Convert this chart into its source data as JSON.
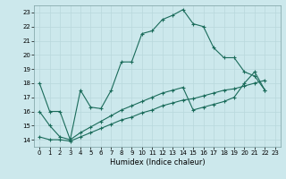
{
  "xlabel": "Humidex (Indice chaleur)",
  "background_color": "#cce8ec",
  "grid_color": "#b8d8dc",
  "line_color": "#1a6b5a",
  "xlim": [
    -0.5,
    23.5
  ],
  "ylim": [
    13.5,
    23.5
  ],
  "xticks": [
    0,
    1,
    2,
    3,
    4,
    5,
    6,
    7,
    8,
    9,
    10,
    11,
    12,
    13,
    14,
    15,
    16,
    17,
    18,
    19,
    20,
    21,
    22,
    23
  ],
  "yticks": [
    14,
    15,
    16,
    17,
    18,
    19,
    20,
    21,
    22,
    23
  ],
  "line1_x": [
    0,
    1,
    2,
    3,
    4,
    5,
    6,
    7,
    8,
    9,
    10,
    11,
    12,
    13,
    14,
    15,
    16,
    17,
    18,
    19,
    20,
    21,
    22
  ],
  "line1_y": [
    18,
    16,
    16,
    14,
    17.5,
    16.3,
    16.2,
    17.5,
    19.5,
    19.5,
    21.5,
    21.7,
    22.5,
    22.8,
    23.2,
    22.2,
    22,
    20.5,
    19.8,
    19.8,
    18.8,
    18.5,
    17.5
  ],
  "line2_x": [
    0,
    1,
    2,
    3,
    4,
    5,
    6,
    7,
    8,
    9,
    10,
    11,
    12,
    13,
    14,
    15,
    16,
    17,
    18,
    19,
    20,
    21,
    22
  ],
  "line2_y": [
    16.0,
    15.0,
    14.2,
    14.0,
    14.5,
    14.9,
    15.3,
    15.7,
    16.1,
    16.4,
    16.7,
    17.0,
    17.3,
    17.5,
    17.7,
    16.1,
    16.3,
    16.5,
    16.7,
    17.0,
    18.0,
    18.8,
    17.5
  ],
  "line3_x": [
    0,
    1,
    2,
    3,
    4,
    5,
    6,
    7,
    8,
    9,
    10,
    11,
    12,
    13,
    14,
    15,
    16,
    17,
    18,
    19,
    20,
    21,
    22
  ],
  "line3_y": [
    14.2,
    14.0,
    14.0,
    13.9,
    14.2,
    14.5,
    14.8,
    15.1,
    15.4,
    15.6,
    15.9,
    16.1,
    16.4,
    16.6,
    16.8,
    16.9,
    17.1,
    17.3,
    17.5,
    17.6,
    17.8,
    18.0,
    18.2
  ]
}
